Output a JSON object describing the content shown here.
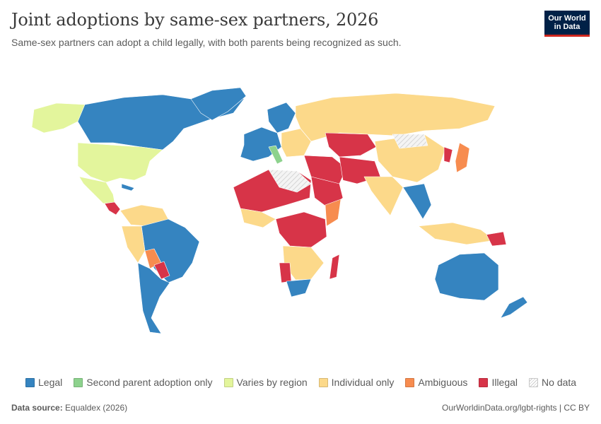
{
  "header": {
    "title": "Joint adoptions by same-sex partners, 2026",
    "subtitle": "Same-sex partners can adopt a child legally, with both parents being recognized as such."
  },
  "logo": {
    "line1": "Our World",
    "line2": "in Data"
  },
  "colors": {
    "legal": "#3584c0",
    "second_parent": "#8dd28d",
    "varies": "#e3f59c",
    "individual": "#fcd98a",
    "ambiguous": "#f78c4f",
    "illegal": "#d73448",
    "no_data": "#e8e8e8",
    "border": "#ffffff"
  },
  "legend": [
    {
      "label": "Legal",
      "color": "#3584c0"
    },
    {
      "label": "Second parent adoption only",
      "color": "#8dd28d"
    },
    {
      "label": "Varies by region",
      "color": "#e3f59c"
    },
    {
      "label": "Individual only",
      "color": "#fcd98a"
    },
    {
      "label": "Ambiguous",
      "color": "#f78c4f"
    },
    {
      "label": "Illegal",
      "color": "#d73448"
    },
    {
      "label": "No data",
      "color": "hatch"
    }
  ],
  "footer": {
    "source_label": "Data source:",
    "source_value": "Equaldex (2026)",
    "link": "OurWorldinData.org/lgbt-rights | CC BY"
  }
}
